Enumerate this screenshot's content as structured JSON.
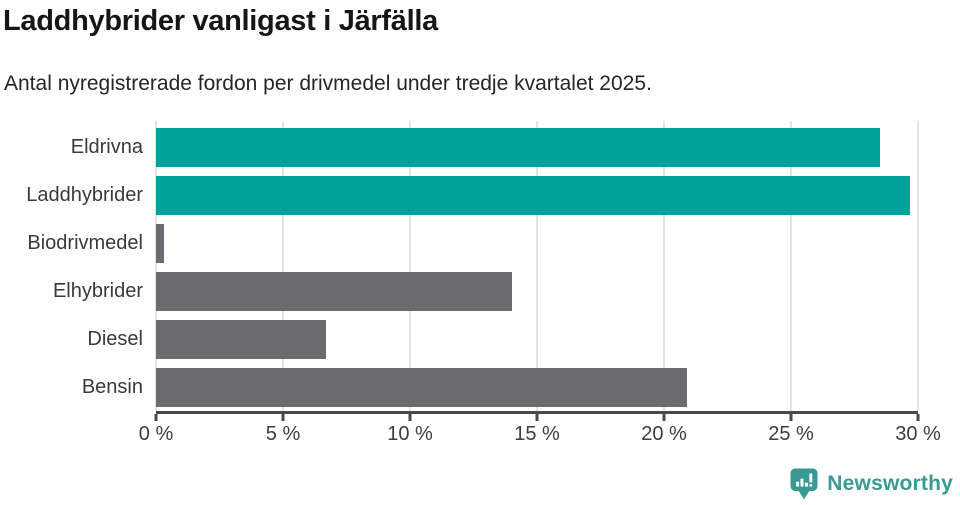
{
  "header": {
    "title": "Laddhybrider vanligast i Järfälla",
    "subtitle": "Antal nyregistrerade fordon per drivmedel under tredje kvartalet 2025."
  },
  "chart_data": {
    "type": "bar",
    "orientation": "horizontal",
    "title": "Laddhybrider vanligast i Järfälla",
    "subtitle": "Antal nyregistrerade fordon per drivmedel under tredje kvartalet 2025.",
    "categories": [
      "Eldrivna",
      "Laddhybrider",
      "Biodrivmedel",
      "Elhybrider",
      "Diesel",
      "Bensin"
    ],
    "values": [
      28.5,
      29.7,
      0.3,
      14.0,
      6.7,
      20.9
    ],
    "unit": "%",
    "xlabel": "",
    "ylabel": "",
    "xlim": [
      0,
      30
    ],
    "xticks": [
      0,
      5,
      10,
      15,
      20,
      25,
      30
    ],
    "xtick_labels": [
      "0 %",
      "5 %",
      "10 %",
      "15 %",
      "20 %",
      "25 %",
      "30 %"
    ],
    "grid": true,
    "legend": "none",
    "highlighted_categories": [
      "Eldrivna",
      "Laddhybrider"
    ],
    "bar_colors": [
      "#00a29b",
      "#00a29b",
      "#6b6b70",
      "#6b6b70",
      "#6b6b70",
      "#6b6b70"
    ],
    "colors": {
      "highlight": "#00a29b",
      "default_bar": "#6b6b70",
      "gridline": "#e4e4e4",
      "axis": "#4a4a4a",
      "tick_label": "#3d3d3d",
      "category_label": "#3a3a3a"
    }
  },
  "footer": {
    "brand": "Newsworthy",
    "logo_color": "#3a9a93"
  }
}
